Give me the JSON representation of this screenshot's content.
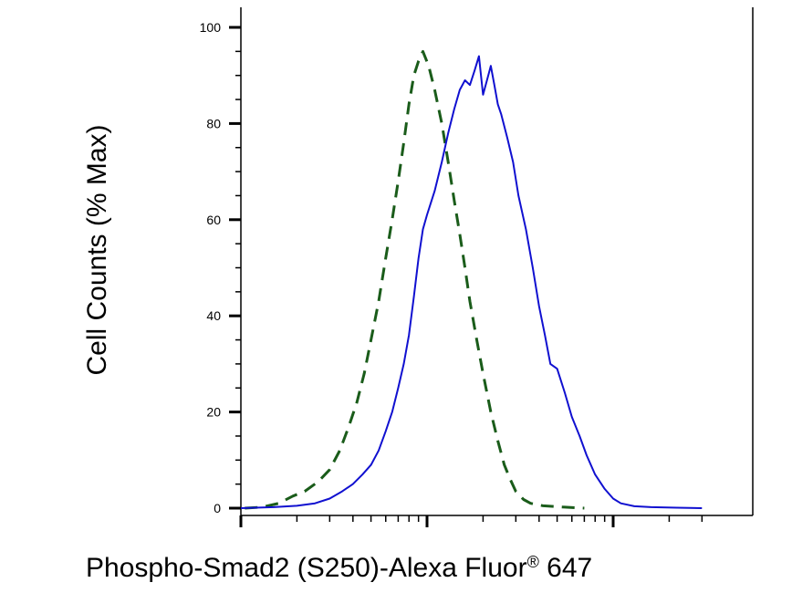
{
  "chart_data": {
    "type": "line",
    "xlabel": "Phospho-Smad2 (S250)-Alexa Fluor",
    "xlabel_superscript": "®",
    "xlabel_suffix": " 647",
    "ylabel": "Cell Counts (% Max)",
    "x_scale": "log",
    "xlim": [
      1,
      300
    ],
    "ylim": [
      0,
      100
    ],
    "y_ticks": [
      {
        "value": 0,
        "label": "0"
      },
      {
        "value": 20,
        "label": "20"
      },
      {
        "value": 40,
        "label": "40"
      },
      {
        "value": 60,
        "label": "60"
      },
      {
        "value": 80,
        "label": "80"
      },
      {
        "value": 100,
        "label": "100"
      }
    ],
    "grid": false,
    "series": [
      {
        "style": "dashed",
        "color": "#1a5c1a",
        "points": [
          [
            1.05,
            0
          ],
          [
            1.3,
            0.2
          ],
          [
            1.6,
            1
          ],
          [
            1.9,
            2.5
          ],
          [
            2.2,
            3.5
          ],
          [
            2.6,
            5.5
          ],
          [
            3.0,
            8
          ],
          [
            3.4,
            12
          ],
          [
            3.8,
            17
          ],
          [
            4.2,
            22
          ],
          [
            4.6,
            28
          ],
          [
            5.0,
            35
          ],
          [
            5.5,
            43
          ],
          [
            6.0,
            52
          ],
          [
            6.5,
            60
          ],
          [
            7.0,
            68
          ],
          [
            7.5,
            76
          ],
          [
            8.0,
            84
          ],
          [
            8.5,
            90
          ],
          [
            9.0,
            93
          ],
          [
            9.5,
            95
          ],
          [
            10.2,
            92
          ],
          [
            11.0,
            87
          ],
          [
            12.0,
            80
          ],
          [
            13.0,
            72
          ],
          [
            14.0,
            64
          ],
          [
            15.0,
            57
          ],
          [
            16.0,
            50
          ],
          [
            17.0,
            43
          ],
          [
            18.5,
            35
          ],
          [
            20.0,
            28
          ],
          [
            22.0,
            20
          ],
          [
            24.0,
            14
          ],
          [
            26.0,
            9
          ],
          [
            28.0,
            6
          ],
          [
            30.0,
            3.5
          ],
          [
            33.0,
            1.8
          ],
          [
            36.0,
            1
          ],
          [
            42.0,
            0.5
          ],
          [
            55.0,
            0.2
          ],
          [
            70.0,
            0
          ]
        ]
      },
      {
        "style": "solid",
        "color": "#1010d0",
        "points": [
          [
            1.0,
            0
          ],
          [
            1.5,
            0.2
          ],
          [
            2.0,
            0.5
          ],
          [
            2.5,
            1
          ],
          [
            3.0,
            2
          ],
          [
            3.5,
            3.5
          ],
          [
            4.0,
            5
          ],
          [
            4.5,
            7
          ],
          [
            5.0,
            9
          ],
          [
            5.5,
            12
          ],
          [
            6.0,
            16
          ],
          [
            6.5,
            20
          ],
          [
            7.0,
            25
          ],
          [
            7.5,
            30
          ],
          [
            8.0,
            36
          ],
          [
            8.5,
            44
          ],
          [
            9.0,
            52
          ],
          [
            9.5,
            58
          ],
          [
            10.0,
            61
          ],
          [
            11.0,
            66
          ],
          [
            12.0,
            72
          ],
          [
            13.0,
            78
          ],
          [
            14.0,
            83
          ],
          [
            15.0,
            87
          ],
          [
            16.0,
            89
          ],
          [
            17.0,
            88
          ],
          [
            18.0,
            91
          ],
          [
            19.0,
            94
          ],
          [
            20.0,
            86
          ],
          [
            21.0,
            89
          ],
          [
            22.0,
            92
          ],
          [
            23.0,
            88
          ],
          [
            24.0,
            84
          ],
          [
            25.0,
            82
          ],
          [
            27.0,
            77
          ],
          [
            29.0,
            72
          ],
          [
            31.0,
            65
          ],
          [
            34.0,
            58
          ],
          [
            37.0,
            50
          ],
          [
            40.0,
            42
          ],
          [
            43.0,
            36
          ],
          [
            46.0,
            30
          ],
          [
            50.0,
            29
          ],
          [
            55.0,
            24
          ],
          [
            60.0,
            19
          ],
          [
            66.0,
            15
          ],
          [
            72.0,
            11
          ],
          [
            80.0,
            7
          ],
          [
            90.0,
            4
          ],
          [
            100.0,
            2
          ],
          [
            110.0,
            1
          ],
          [
            130.0,
            0.4
          ],
          [
            160.0,
            0.2
          ],
          [
            220.0,
            0.1
          ],
          [
            300.0,
            0
          ]
        ]
      }
    ]
  }
}
